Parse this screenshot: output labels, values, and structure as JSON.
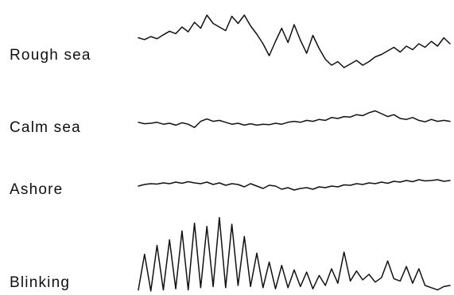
{
  "chart_data": {
    "type": "line",
    "title": "",
    "xlabel": "",
    "ylabel": "",
    "grid": false,
    "legend": "none",
    "x": [
      0,
      0.02,
      0.04,
      0.06,
      0.08,
      0.1,
      0.12,
      0.14,
      0.16,
      0.18,
      0.2,
      0.22,
      0.24,
      0.26,
      0.28,
      0.3,
      0.32,
      0.34,
      0.36,
      0.38,
      0.4,
      0.42,
      0.44,
      0.46,
      0.48,
      0.5,
      0.52,
      0.54,
      0.56,
      0.58,
      0.6,
      0.62,
      0.64,
      0.66,
      0.68,
      0.7,
      0.72,
      0.74,
      0.76,
      0.78,
      0.8,
      0.82,
      0.84,
      0.86,
      0.88,
      0.9,
      0.92,
      0.94,
      0.96,
      0.98,
      1.0
    ],
    "series": [
      {
        "name": "Rough sea",
        "values": [
          0.7,
          0.55,
          0.8,
          0.62,
          0.95,
          1.25,
          1.05,
          1.6,
          1.2,
          2.0,
          1.5,
          2.6,
          1.9,
          1.6,
          1.3,
          2.5,
          1.9,
          2.6,
          1.7,
          1.0,
          0.2,
          -0.8,
          0.4,
          1.5,
          0.3,
          1.8,
          0.5,
          -0.6,
          0.9,
          -0.2,
          -1.1,
          -1.6,
          -1.3,
          -1.8,
          -1.5,
          -1.2,
          -1.6,
          -1.3,
          -0.9,
          -0.7,
          -0.4,
          -0.1,
          -0.5,
          0.0,
          -0.3,
          0.2,
          -0.1,
          0.4,
          0.0,
          0.7,
          0.2
        ]
      },
      {
        "name": "Calm sea",
        "values": [
          0.1,
          -0.05,
          0.0,
          0.1,
          -0.1,
          0.0,
          -0.2,
          0.05,
          -0.1,
          -0.45,
          0.2,
          0.45,
          0.2,
          0.3,
          0.1,
          -0.1,
          0.0,
          -0.2,
          -0.05,
          -0.2,
          -0.1,
          -0.15,
          0.0,
          -0.1,
          0.1,
          0.2,
          0.1,
          0.3,
          0.2,
          0.4,
          0.3,
          0.6,
          0.5,
          0.7,
          0.65,
          0.9,
          0.8,
          1.1,
          1.3,
          1.0,
          0.7,
          0.9,
          0.5,
          0.4,
          0.6,
          0.3,
          0.15,
          0.4,
          0.2,
          0.3,
          0.2
        ]
      },
      {
        "name": "Ashore",
        "values": [
          0.0,
          0.2,
          0.3,
          0.25,
          0.4,
          0.3,
          0.5,
          0.35,
          0.55,
          0.4,
          0.3,
          0.5,
          0.2,
          0.4,
          0.1,
          0.3,
          0.2,
          -0.1,
          0.3,
          0.0,
          -0.3,
          0.1,
          0.0,
          -0.4,
          -0.2,
          -0.5,
          -0.3,
          -0.2,
          -0.4,
          -0.1,
          -0.2,
          0.0,
          -0.1,
          0.15,
          0.1,
          0.3,
          0.2,
          0.4,
          0.3,
          0.5,
          0.35,
          0.6,
          0.5,
          0.7,
          0.55,
          0.8,
          0.65,
          0.7,
          0.8,
          0.6,
          0.7
        ]
      },
      {
        "name": "Blinking",
        "values": [
          0.1,
          3.3,
          0.0,
          4.1,
          0.1,
          4.6,
          0.2,
          5.4,
          0.1,
          6.1,
          0.3,
          5.8,
          0.4,
          6.6,
          0.3,
          6.0,
          0.5,
          4.9,
          0.4,
          3.4,
          0.3,
          2.6,
          0.2,
          2.3,
          0.3,
          1.9,
          0.4,
          1.7,
          0.2,
          1.4,
          0.5,
          2.0,
          0.7,
          3.5,
          0.9,
          1.8,
          1.0,
          1.5,
          0.8,
          1.2,
          2.7,
          1.1,
          0.9,
          2.2,
          0.7,
          2.0,
          0.5,
          0.3,
          0.1,
          0.4,
          0.5
        ]
      }
    ],
    "labels": [
      "Rough sea",
      "Calm sea",
      "Ashore",
      "Blinking"
    ]
  }
}
